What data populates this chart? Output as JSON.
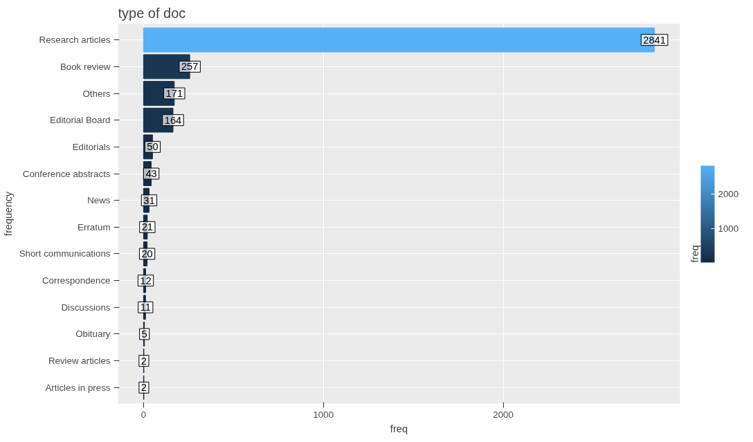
{
  "chart_data": {
    "type": "bar",
    "orientation": "horizontal",
    "title": "type of doc",
    "xlabel": "freq",
    "ylabel": "frequency",
    "clabel": "freq",
    "categories": [
      "Research articles",
      "Book review",
      "Others",
      "Editorial Board",
      "Editorials",
      "Conference abstracts",
      "News",
      "Erratum",
      "Short communications",
      "Correspondence",
      "Discussions",
      "Obituary",
      "Review articles",
      "Articles in press"
    ],
    "values": [
      2841,
      257,
      171,
      164,
      50,
      43,
      31,
      21,
      20,
      12,
      11,
      5,
      2,
      2
    ],
    "colors": [
      "#56b1f7",
      "#193753",
      "#17334e",
      "#17334e",
      "#142d46",
      "#142d45",
      "#132c44",
      "#132c44",
      "#132c44",
      "#132b43",
      "#132b43",
      "#132b43",
      "#132b43",
      "#132b43"
    ],
    "xlim": [
      -142,
      2983
    ],
    "xticks": [
      0,
      1000,
      2000
    ],
    "clim": [
      2,
      2841
    ],
    "cticks": [
      1000,
      2000
    ],
    "grid": true,
    "data_labels": true
  }
}
